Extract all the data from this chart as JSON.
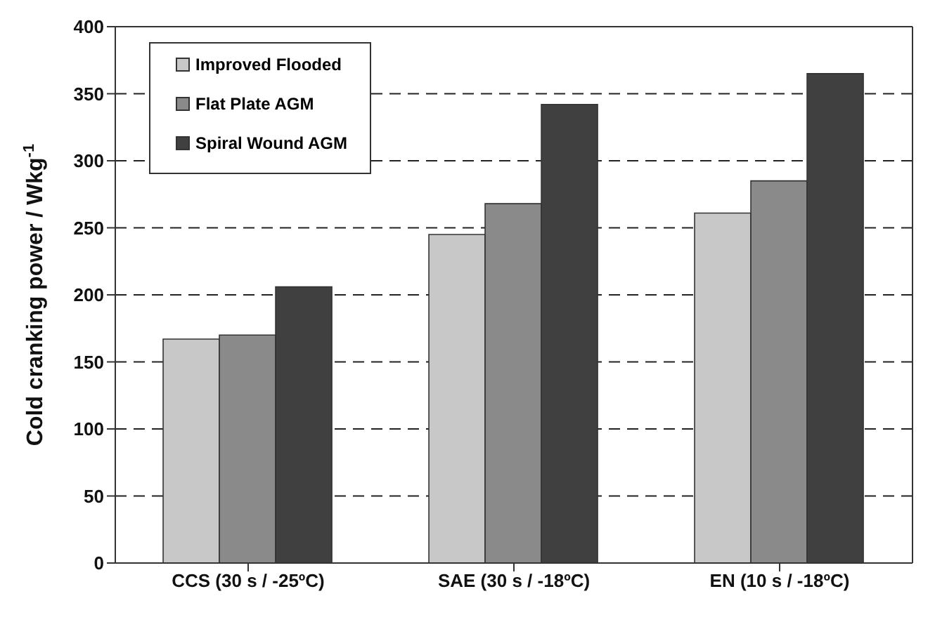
{
  "chart_data": {
    "type": "bar",
    "ylabel": "Cold cranking power / Wkg$^{-1}$",
    "categories": [
      "CCS (30 s / -25ºC)",
      "SAE (30 s / -18ºC)",
      "EN (10 s / -18ºC)"
    ],
    "series": [
      {
        "name": "Improved Flooded",
        "color": "#c8c8c8",
        "values": [
          167,
          245,
          261
        ]
      },
      {
        "name": "Flat Plate AGM",
        "color": "#8a8a8a",
        "values": [
          170,
          268,
          285
        ]
      },
      {
        "name": "Spiral Wound AGM",
        "color": "#404040",
        "values": [
          206,
          342,
          365
        ]
      }
    ],
    "ylim": [
      0,
      400
    ],
    "yticks": [
      0,
      50,
      100,
      150,
      200,
      250,
      300,
      350,
      400
    ],
    "grid": "y",
    "legend": "top left"
  }
}
